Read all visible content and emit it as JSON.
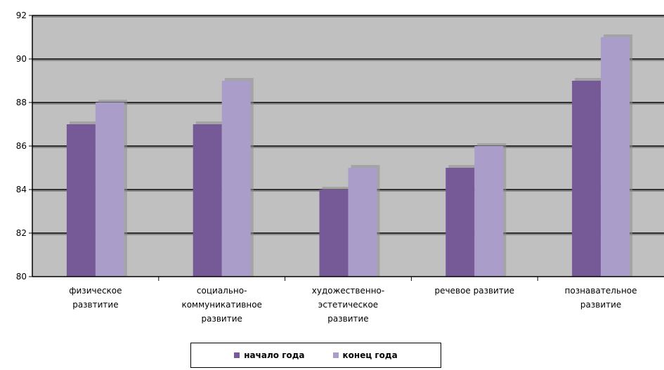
{
  "chart_data": {
    "type": "bar",
    "title": "",
    "xlabel": "",
    "ylabel": "",
    "ylim": [
      80,
      92
    ],
    "yticks": [
      80,
      82,
      84,
      86,
      88,
      90,
      92
    ],
    "grid": true,
    "legend_position": "bottom",
    "plot_background": "#c0c0c0",
    "categories": [
      [
        "физическое",
        "развтитие"
      ],
      [
        "социально-",
        "коммуникативное",
        "развитие"
      ],
      [
        "художественно-",
        "эстетическое",
        "развитие"
      ],
      [
        "речевое развитие"
      ],
      [
        "познавательное",
        "развитие"
      ]
    ],
    "series": [
      {
        "name": "начало года",
        "color": "#765a97",
        "values": [
          87,
          87,
          84,
          85,
          89
        ]
      },
      {
        "name": "конец года",
        "color": "#ab9dc9",
        "values": [
          88,
          89,
          85,
          86,
          91
        ]
      }
    ]
  }
}
